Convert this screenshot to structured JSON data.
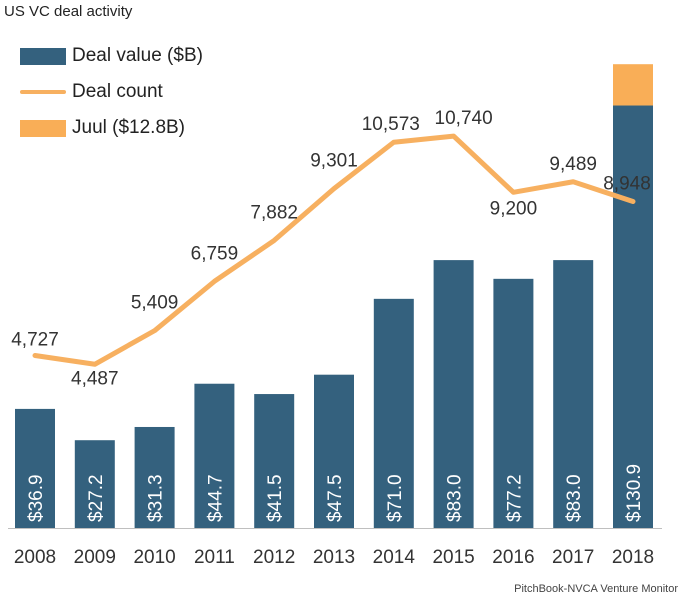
{
  "title": "US VC deal activity",
  "source": "PitchBook-NVCA Venture Monitor",
  "colors": {
    "bar": "#34617e",
    "line": "#f7b060",
    "juul": "#f9ae57",
    "bar_label": "#ffffff"
  },
  "legend": [
    {
      "label": "Deal value ($B)",
      "kind": "bar"
    },
    {
      "label": "Deal count",
      "kind": "line"
    },
    {
      "label": "Juul ($12.8B)",
      "kind": "juul"
    }
  ],
  "chart_data": {
    "type": "bar",
    "title": "US VC deal activity",
    "categories": [
      "2008",
      "2009",
      "2010",
      "2011",
      "2012",
      "2013",
      "2014",
      "2015",
      "2016",
      "2017",
      "2018"
    ],
    "series": [
      {
        "name": "Deal value ($B)",
        "type": "bar",
        "axis": "left",
        "values": [
          36.9,
          27.2,
          31.3,
          44.7,
          41.5,
          47.5,
          71.0,
          83.0,
          77.2,
          83.0,
          130.9
        ],
        "labels": [
          "$36.9",
          "$27.2",
          "$31.3",
          "$44.7",
          "$41.5",
          "$47.5",
          "$71.0",
          "$83.0",
          "$77.2",
          "$83.0",
          "$130.9"
        ]
      },
      {
        "name": "Juul ($12.8B)",
        "type": "bar-stack",
        "axis": "left",
        "values": [
          0,
          0,
          0,
          0,
          0,
          0,
          0,
          0,
          0,
          0,
          12.8
        ]
      },
      {
        "name": "Deal count",
        "type": "line",
        "axis": "right",
        "values": [
          4727,
          4487,
          5409,
          6759,
          7882,
          9301,
          10573,
          10740,
          9200,
          9489,
          8948
        ],
        "labels": [
          "4,727",
          "4,487",
          "5,409",
          "6,759",
          "7,882",
          "9,301",
          "10,573",
          "10,740",
          "9,200",
          "9,489",
          "8,948"
        ]
      }
    ],
    "ylim_left": [
      0,
      145
    ],
    "ylim_right": [
      0,
      13100
    ],
    "grid": false,
    "legend_position": "top-left"
  }
}
